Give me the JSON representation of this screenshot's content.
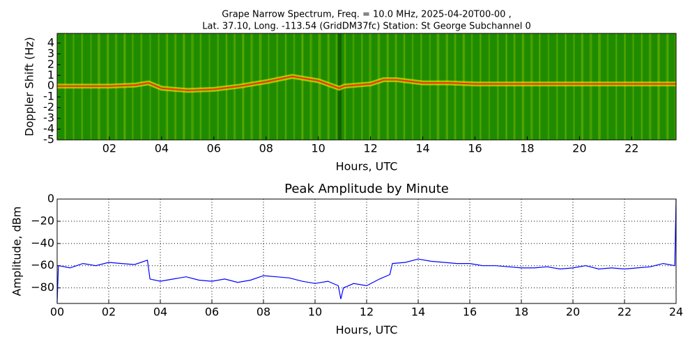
{
  "chart_data": [
    {
      "type": "spectrogram",
      "title": [
        "Grape Narrow Spectrum, Freq. = 10.0 MHz, 2025-04-20T00-00 ,",
        "Lat.  37.10, Long. -113.54 (GridDM37fc) Station: St George Subchannel 0"
      ],
      "xlabel": "Hours, UTC",
      "ylabel": "Doppler Shift (Hz)",
      "xlim": [
        0,
        23.7
      ],
      "ylim": [
        -5,
        4.9
      ],
      "xticks": [
        {
          "value": 2,
          "label": "02"
        },
        {
          "value": 4,
          "label": "04"
        },
        {
          "value": 6,
          "label": "06"
        },
        {
          "value": 8,
          "label": "08"
        },
        {
          "value": 10,
          "label": "10"
        },
        {
          "value": 12,
          "label": "12"
        },
        {
          "value": 14,
          "label": "14"
        },
        {
          "value": 16,
          "label": "16"
        },
        {
          "value": 18,
          "label": "18"
        },
        {
          "value": 20,
          "label": "20"
        },
        {
          "value": 22,
          "label": "22"
        }
      ],
      "yticks": [
        4,
        3,
        2,
        1,
        0,
        -1,
        -2,
        -3,
        -4,
        -5
      ],
      "background_color": "#1f8c00",
      "color": "#ff2a00",
      "x": [
        0,
        1,
        2,
        3,
        3.5,
        4,
        5,
        6,
        7,
        8,
        9,
        10,
        10.8,
        11,
        12,
        12.5,
        13,
        14,
        15,
        16,
        17,
        18,
        19,
        20,
        21,
        22,
        23,
        23.7
      ],
      "values": [
        0,
        0,
        0,
        0.1,
        0.3,
        -0.2,
        -0.4,
        -0.3,
        0,
        0.4,
        0.9,
        0.5,
        -0.2,
        0,
        0.2,
        0.6,
        0.6,
        0.3,
        0.3,
        0.2,
        0.2,
        0.2,
        0.2,
        0.2,
        0.2,
        0.2,
        0.2,
        0.2
      ]
    },
    {
      "type": "line",
      "title": "Peak Amplitude by Minute",
      "xlabel": "Hours, UTC",
      "ylabel": "Amplitude, dBm",
      "xlim": [
        0,
        24
      ],
      "ylim": [
        -94,
        0
      ],
      "xticks": [
        {
          "value": 0,
          "label": "00"
        },
        {
          "value": 2,
          "label": "02"
        },
        {
          "value": 4,
          "label": "04"
        },
        {
          "value": 6,
          "label": "06"
        },
        {
          "value": 8,
          "label": "08"
        },
        {
          "value": 10,
          "label": "10"
        },
        {
          "value": 12,
          "label": "12"
        },
        {
          "value": 14,
          "label": "14"
        },
        {
          "value": 16,
          "label": "16"
        },
        {
          "value": 18,
          "label": "18"
        },
        {
          "value": 20,
          "label": "20"
        },
        {
          "value": 22,
          "label": "22"
        },
        24
      ],
      "yticks": [
        0,
        {
          "value": -20,
          "label": "−20"
        },
        {
          "value": -40,
          "label": "−40"
        },
        {
          "value": -60,
          "label": "−60"
        },
        {
          "value": -80,
          "label": "−80"
        }
      ],
      "grid": true,
      "color": "#0000ff",
      "x": [
        0,
        0.05,
        0.5,
        1,
        1.5,
        2,
        2.5,
        3,
        3.5,
        3.6,
        4,
        4.5,
        5,
        5.5,
        6,
        6.5,
        7,
        7.5,
        8,
        8.5,
        9,
        9.5,
        10,
        10.5,
        10.9,
        11,
        11.1,
        11.5,
        12,
        12.5,
        12.9,
        13,
        13.5,
        14,
        14.5,
        15,
        15.5,
        16,
        16.5,
        17,
        17.5,
        18,
        18.5,
        19,
        19.5,
        20,
        20.5,
        21,
        21.5,
        22,
        22.5,
        23,
        23.5,
        23.95,
        24
      ],
      "values": [
        -93,
        -60,
        -62,
        -58,
        -60,
        -57,
        -58,
        -59,
        -55,
        -72,
        -74,
        -72,
        -70,
        -73,
        -74,
        -72,
        -75,
        -73,
        -69,
        -70,
        -71,
        -74,
        -76,
        -74,
        -78,
        -90,
        -80,
        -76,
        -78,
        -72,
        -68,
        -58,
        -57,
        -54,
        -56,
        -57,
        -58,
        -58,
        -60,
        -60,
        -61,
        -62,
        -62,
        -61,
        -63,
        -62,
        -60,
        -63,
        -62,
        -63,
        -62,
        -61,
        -58,
        -60,
        0
      ]
    }
  ]
}
